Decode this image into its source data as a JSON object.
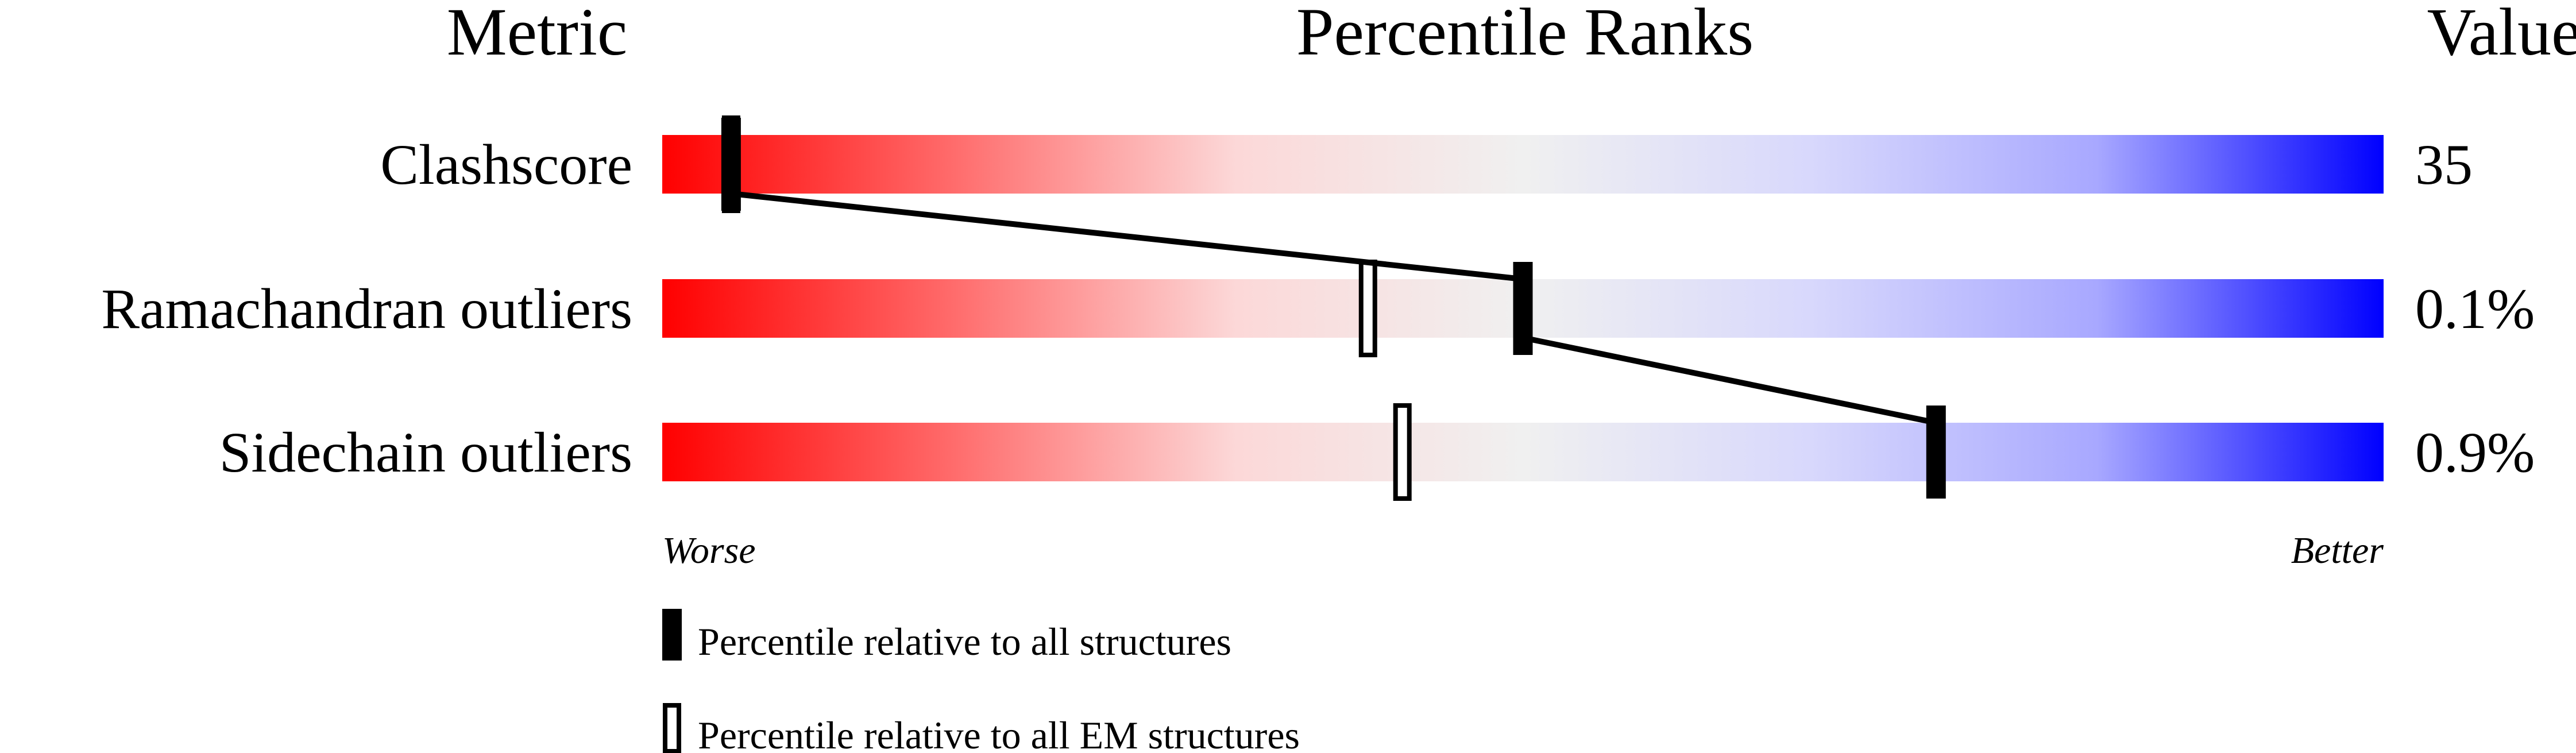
{
  "chart_data": {
    "type": "percentile-slider",
    "headers": {
      "metric": "Metric",
      "ranks": "Percentile Ranks",
      "value": "Value"
    },
    "xlim": [
      0,
      100
    ],
    "axis_ends": {
      "left": "Worse",
      "right": "Better"
    },
    "gradient_colors": [
      "#ff0000",
      "#ff6a6a",
      "#fcd8d8",
      "#f0f0f0",
      "#d8d8fc",
      "#a8a8ff",
      "#0000ff"
    ],
    "metrics": [
      {
        "name": "Clashscore",
        "value": "35",
        "percentile_all": 4,
        "percentile_em": 4
      },
      {
        "name": "Ramachandran outliers",
        "value": "0.1%",
        "percentile_all": 50,
        "percentile_em": 41
      },
      {
        "name": "Sidechain outliers",
        "value": "0.9%",
        "percentile_all": 74,
        "percentile_em": 43
      }
    ],
    "legend": [
      {
        "marker": "filled",
        "label": "Percentile relative to all structures"
      },
      {
        "marker": "hollow",
        "label": "Percentile relative to all EM structures"
      }
    ]
  }
}
